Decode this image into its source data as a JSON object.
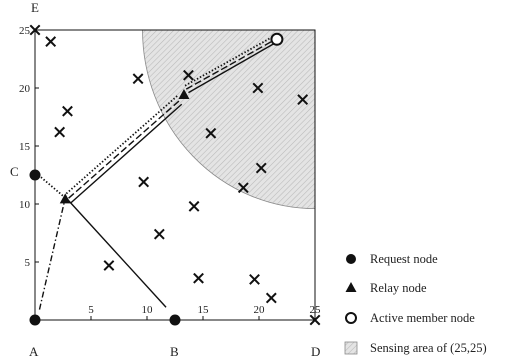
{
  "figure": {
    "axis": {
      "min": 0,
      "max": 25,
      "ticks": [
        5,
        10,
        15,
        20,
        25
      ]
    },
    "corner_labels": {
      "A": {
        "text": "A",
        "x": 0,
        "y": 0
      },
      "B": {
        "text": "B",
        "x": 12.5,
        "y": 0
      },
      "C": {
        "text": "C",
        "x": 0,
        "y": 12.5
      },
      "D": {
        "text": "D",
        "x": 25,
        "y": 0
      },
      "E": {
        "text": "E",
        "x": 0,
        "y": 25
      }
    },
    "request_nodes": [
      {
        "x": 0,
        "y": 0
      },
      {
        "x": 12.5,
        "y": 0
      },
      {
        "x": 0,
        "y": 12.5
      }
    ],
    "relay_nodes": [
      {
        "x": 2.7,
        "y": 10.4
      },
      {
        "x": 13.3,
        "y": 19.4
      }
    ],
    "active_member_nodes": [
      {
        "x": 21.6,
        "y": 24.2
      }
    ],
    "sensor_nodes": [
      {
        "x": 0,
        "y": 25
      },
      {
        "x": 1.4,
        "y": 24.0
      },
      {
        "x": 9.2,
        "y": 20.8
      },
      {
        "x": 13.7,
        "y": 21.1
      },
      {
        "x": 2.9,
        "y": 18.0
      },
      {
        "x": 2.2,
        "y": 16.2
      },
      {
        "x": 19.9,
        "y": 20.0
      },
      {
        "x": 23.9,
        "y": 19.0
      },
      {
        "x": 15.7,
        "y": 16.1
      },
      {
        "x": 20.2,
        "y": 13.1
      },
      {
        "x": 9.7,
        "y": 11.9
      },
      {
        "x": 18.6,
        "y": 11.4
      },
      {
        "x": 14.2,
        "y": 9.8
      },
      {
        "x": 11.1,
        "y": 7.4
      },
      {
        "x": 6.6,
        "y": 4.7
      },
      {
        "x": 14.6,
        "y": 3.6
      },
      {
        "x": 19.6,
        "y": 3.5
      },
      {
        "x": 21.1,
        "y": 1.9
      },
      {
        "x": 25,
        "y": 0
      }
    ],
    "sensing_area": {
      "center": {
        "x": 25,
        "y": 25
      },
      "radius": 15.4
    },
    "paths": [
      {
        "style": "solid",
        "points": [
          {
            "x": 2.9,
            "y": 10.4
          },
          {
            "x": 11.7,
            "y": 1.1
          }
        ]
      },
      {
        "style": "dashdot",
        "points": [
          {
            "x": 0.4,
            "y": 0.9
          },
          {
            "x": 2.6,
            "y": 10.1
          }
        ]
      },
      {
        "style": "dotted",
        "points": [
          {
            "x": 0.3,
            "y": 12.5
          },
          {
            "x": 2.5,
            "y": 10.7
          }
        ]
      },
      {
        "style": "solid",
        "points": [
          {
            "x": 3.2,
            "y": 10.1
          },
          {
            "x": 13.1,
            "y": 18.6
          }
        ]
      },
      {
        "style": "dashed",
        "points": [
          {
            "x": 3.0,
            "y": 10.5
          },
          {
            "x": 13.0,
            "y": 19.0
          }
        ]
      },
      {
        "style": "dotted",
        "points": [
          {
            "x": 2.8,
            "y": 10.9
          },
          {
            "x": 12.8,
            "y": 19.4
          }
        ]
      },
      {
        "style": "solid",
        "points": [
          {
            "x": 13.7,
            "y": 19.6
          },
          {
            "x": 21.3,
            "y": 23.8
          }
        ]
      },
      {
        "style": "dashed",
        "points": [
          {
            "x": 13.5,
            "y": 19.9
          },
          {
            "x": 21.3,
            "y": 24.1
          }
        ]
      },
      {
        "style": "dotted",
        "points": [
          {
            "x": 13.4,
            "y": 20.2
          },
          {
            "x": 21.2,
            "y": 24.4
          }
        ]
      }
    ],
    "legend": [
      {
        "marker": "request-node",
        "label": "Request node"
      },
      {
        "marker": "relay-node",
        "label": "Relay node"
      },
      {
        "marker": "active-member-node",
        "label": "Active member node"
      },
      {
        "marker": "sensing-area",
        "label": "Sensing area of (25,25)"
      }
    ]
  }
}
